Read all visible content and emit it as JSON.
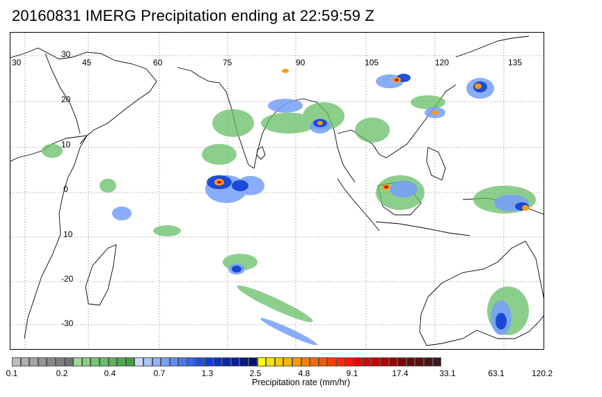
{
  "title": "20160831 IMERG Precipitation ending at 22:59:59 Z",
  "map": {
    "longitude_labels": [
      "30",
      "45",
      "60",
      "75",
      "90",
      "105",
      "120",
      "135"
    ],
    "latitude_labels": [
      "30",
      "20",
      "10",
      "0",
      "10",
      "-20",
      "-30"
    ],
    "gridlines": "dotted"
  },
  "colorbar": {
    "title": "Precipitation rate (mm/hr)",
    "tick_labels": [
      "0.1",
      "0.2",
      "0.4",
      "0.7",
      "1.3",
      "2.5",
      "4.8",
      "9.1",
      "17.4",
      "33.1",
      "63.1",
      "120.2"
    ],
    "colors": [
      "#bdbdbd",
      "#b0b0b0",
      "#a3a3a3",
      "#969696",
      "#8a8a8a",
      "#7e7e7e",
      "#737373",
      "#97d997",
      "#86d086",
      "#75c775",
      "#66be66",
      "#58b558",
      "#4aab4a",
      "#3ea23e",
      "#c7d9ff",
      "#a9c4ff",
      "#8fb1ff",
      "#769ffa",
      "#5e8cf5",
      "#4879ef",
      "#3366e8",
      "#1f52e0",
      "#0f3fd6",
      "#0a32c8",
      "#0828b5",
      "#061fa0",
      "#05188a",
      "#041275",
      "#ffff00",
      "#ffe600",
      "#ffcc00",
      "#ffb300",
      "#ff9900",
      "#ff8000",
      "#ff6a00",
      "#ff5500",
      "#ff3f00",
      "#ff2a00",
      "#ff1500",
      "#f50000",
      "#e00000",
      "#cc0000",
      "#b30000",
      "#9a0000",
      "#820000",
      "#6e0808",
      "#5c1010",
      "#4b1414",
      "#3c1818"
    ]
  }
}
